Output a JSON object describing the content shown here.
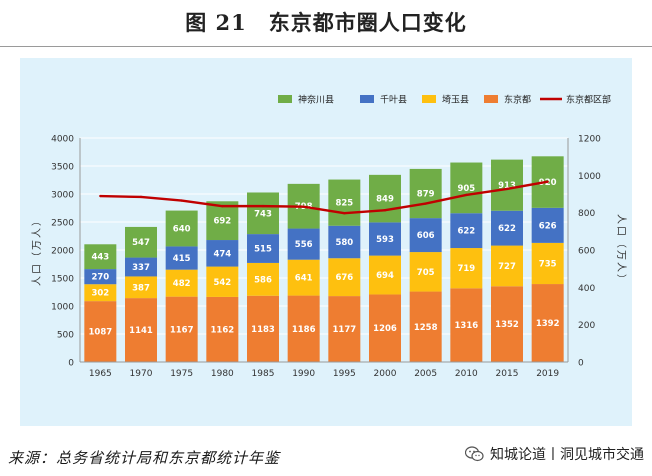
{
  "figure": {
    "title": "图 21　东京都市圈人口变化",
    "source": "来源：总务省统计局和东京都统计年鉴",
    "watermark": "知城论道丨洞见城市交通"
  },
  "chart_data": {
    "type": "stacked-bar+line",
    "categories": [
      "1965",
      "1970",
      "1975",
      "1980",
      "1985",
      "1990",
      "1995",
      "2000",
      "2005",
      "2010",
      "2015",
      "2019"
    ],
    "series": [
      {
        "name": "东京都",
        "color": "#ee7d31",
        "values": [
          1087,
          1141,
          1167,
          1162,
          1183,
          1186,
          1177,
          1206,
          1258,
          1316,
          1352,
          1392
        ]
      },
      {
        "name": "埼玉县",
        "color": "#fec00f",
        "values": [
          302,
          387,
          482,
          542,
          586,
          641,
          676,
          694,
          705,
          719,
          727,
          735
        ]
      },
      {
        "name": "千叶县",
        "color": "#4472c4",
        "values": [
          270,
          337,
          415,
          474,
          515,
          556,
          580,
          593,
          606,
          622,
          622,
          626
        ]
      },
      {
        "name": "神奈川县",
        "color": "#70ad47",
        "values": [
          443,
          547,
          640,
          692,
          743,
          798,
          825,
          849,
          879,
          905,
          913,
          920
        ]
      }
    ],
    "line": {
      "name": "东京都区部",
      "color": "#c00000",
      "axis": "right",
      "values": [
        889,
        884,
        865,
        835,
        835,
        832,
        797,
        813,
        849,
        895,
        927,
        966
      ]
    },
    "legend_order": [
      "神奈川县",
      "千叶县",
      "埼玉县",
      "东京都",
      "东京都区部"
    ],
    "legend_position": "top-right",
    "ylabel": "人口（万人）",
    "ylim": [
      0,
      4000
    ],
    "y_ticks": [
      0,
      500,
      1000,
      1500,
      2000,
      2500,
      3000,
      3500,
      4000
    ],
    "y2label": "人口（万人）",
    "y2lim": [
      0,
      1200
    ],
    "y2_ticks": [
      0,
      200,
      400,
      600,
      800,
      1000,
      1200
    ],
    "grid": true
  }
}
